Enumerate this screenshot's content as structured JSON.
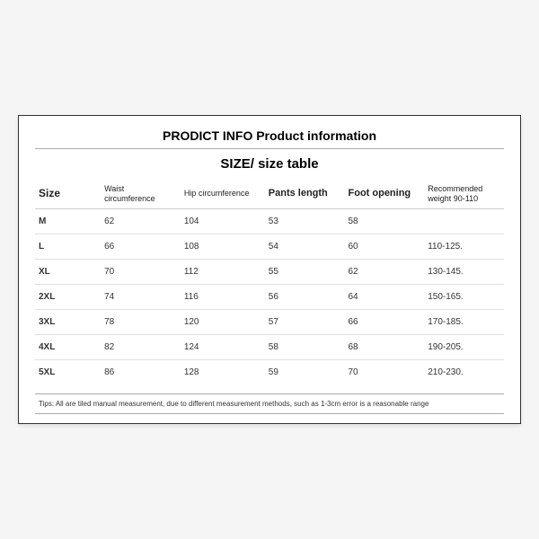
{
  "title": "PRODICT INFO Product information",
  "subtitle": "SIZE/ size table",
  "columns": [
    "Size",
    "Waist circumference",
    "Hip circumference",
    "Pants length",
    "Foot opening",
    "Recommended weight 90-110"
  ],
  "col_widths_pct": [
    14,
    17,
    18,
    17,
    17,
    17
  ],
  "rows": [
    [
      "M",
      "62",
      "104",
      "53",
      "58",
      ""
    ],
    [
      "L",
      "66",
      "108",
      "54",
      "60",
      "110-125."
    ],
    [
      "XL",
      "70",
      "112",
      "55",
      "62",
      "130-145."
    ],
    [
      "2XL",
      "74",
      "116",
      "56",
      "64",
      "150-165."
    ],
    [
      "3XL",
      "78",
      "120",
      "57",
      "66",
      "170-185."
    ],
    [
      "4XL",
      "82",
      "124",
      "58",
      "68",
      "190-205."
    ],
    [
      "5XL",
      "86",
      "128",
      "59",
      "70",
      "210-230."
    ]
  ],
  "tips": "Tips: All are tiled manual measurement, due to different measurement methods, such as 1-3cm error is a reasonable range",
  "colors": {
    "page_bg": "#f5f5f5",
    "card_bg": "#ffffff",
    "border": "#333333",
    "row_divider": "#e0e0e0",
    "text": "#222222"
  }
}
